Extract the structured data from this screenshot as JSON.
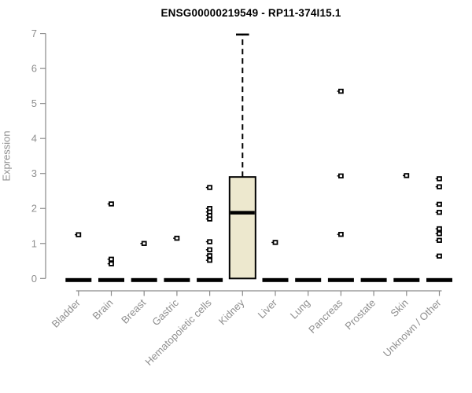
{
  "chart_data": {
    "type": "box",
    "title": "ENSG00000219549 - RP11-374I15.1",
    "xlabel": "",
    "ylabel": "Expression",
    "ylim": [
      0,
      7
    ],
    "yticks": [
      0,
      1,
      2,
      3,
      4,
      5,
      6,
      7
    ],
    "grid": "off",
    "legend": "none",
    "categories": [
      "Bladder",
      "Brain",
      "Breast",
      "Gastric",
      "Hematopoietic cells",
      "Kidney",
      "Liver",
      "Lung",
      "Pancreas",
      "Prostate",
      "Skin",
      "Unknown / Other"
    ],
    "boxes": [
      {
        "q1": 0,
        "median": 0,
        "q3": 0,
        "whisker_low": 0,
        "whisker_high": 0,
        "outliers": [
          1.25
        ]
      },
      {
        "q1": 0,
        "median": 0,
        "q3": 0,
        "whisker_low": 0,
        "whisker_high": 0,
        "outliers": [
          2.13,
          0.55,
          0.42
        ]
      },
      {
        "q1": 0,
        "median": 0,
        "q3": 0,
        "whisker_low": 0,
        "whisker_high": 0,
        "outliers": [
          1.0
        ]
      },
      {
        "q1": 0,
        "median": 0,
        "q3": 0,
        "whisker_low": 0,
        "whisker_high": 0,
        "outliers": [
          1.15
        ]
      },
      {
        "q1": 0,
        "median": 0,
        "q3": 0,
        "whisker_low": 0,
        "whisker_high": 0,
        "outliers": [
          2.6,
          2.0,
          1.9,
          1.8,
          1.7,
          1.05,
          0.82,
          0.65,
          0.52
        ]
      },
      {
        "q1": 0,
        "median": 1.88,
        "q3": 2.9,
        "whisker_low": 0,
        "whisker_high": 6.97,
        "outliers": []
      },
      {
        "q1": 0,
        "median": 0,
        "q3": 0,
        "whisker_low": 0,
        "whisker_high": 0,
        "outliers": [
          1.03
        ]
      },
      {
        "q1": 0,
        "median": 0,
        "q3": 0,
        "whisker_low": 0,
        "whisker_high": 0,
        "outliers": []
      },
      {
        "q1": 0,
        "median": 0,
        "q3": 0,
        "whisker_low": 0,
        "whisker_high": 0,
        "outliers": [
          5.35,
          2.93,
          1.26
        ]
      },
      {
        "q1": 0,
        "median": 0,
        "q3": 0,
        "whisker_low": 0,
        "whisker_high": 0,
        "outliers": []
      },
      {
        "q1": 0,
        "median": 0,
        "q3": 0,
        "whisker_low": 0,
        "whisker_high": 0,
        "outliers": [
          2.94
        ]
      },
      {
        "q1": 0,
        "median": 0,
        "q3": 0,
        "whisker_low": 0,
        "whisker_high": 0,
        "outliers": [
          2.85,
          2.62,
          2.12,
          1.89,
          1.42,
          1.28,
          1.09,
          0.64
        ]
      }
    ],
    "colors": {
      "box_fill": "#ede8ce",
      "box_stroke": "#000000",
      "median_color": "#000000",
      "point_color": "#000000",
      "axis_color": "#8a8a8a",
      "tick_label_color": "#8f8f8f",
      "title_color": "#000000"
    }
  }
}
